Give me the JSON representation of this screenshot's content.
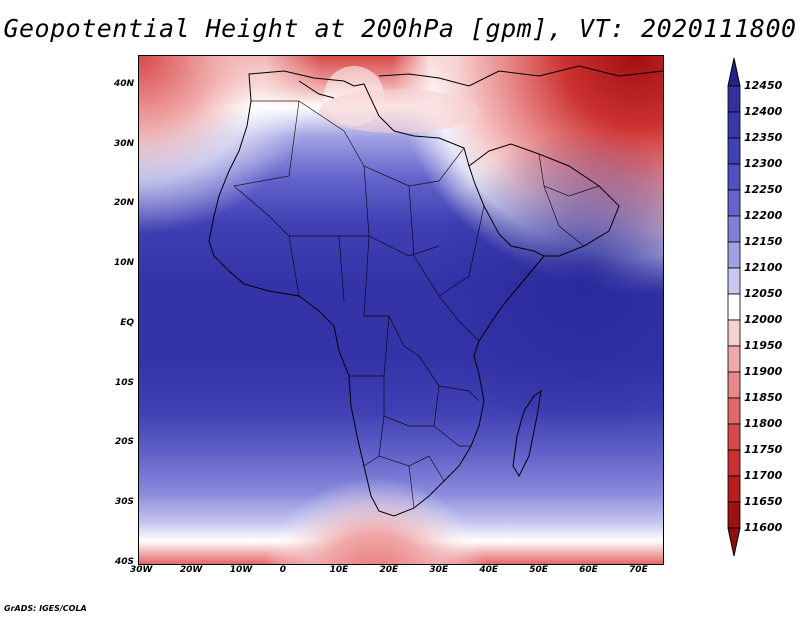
{
  "title": "Geopotential Height at 200hPa [gpm], VT: 2020111800",
  "footer": "GrADS: IGES/COLA",
  "map": {
    "lat_labels": [
      "40N",
      "30N",
      "20N",
      "10N",
      "EQ",
      "10S",
      "20S",
      "30S",
      "40S"
    ],
    "lon_labels": [
      "30W",
      "20W",
      "10W",
      "0",
      "10E",
      "20E",
      "30E",
      "40E",
      "50E",
      "60E",
      "70E"
    ],
    "lat_range": [
      -40,
      45
    ],
    "lon_range": [
      -30,
      75
    ]
  },
  "colorbar": {
    "levels": [
      "12450",
      "12400",
      "12350",
      "12300",
      "12250",
      "12200",
      "12150",
      "12100",
      "12050",
      "12000",
      "11950",
      "11900",
      "11850",
      "11800",
      "11750",
      "11700",
      "11650",
      "11600"
    ],
    "colors": [
      "#2a2a9c",
      "#32329f",
      "#3838aa",
      "#4040b4",
      "#5050c0",
      "#6464cc",
      "#8080d8",
      "#a0a0e4",
      "#c8c8f0",
      "#ffffff",
      "#f7d0d0",
      "#f0a8a8",
      "#e88888",
      "#e06868",
      "#d84848",
      "#cc3030",
      "#b81c1c",
      "#a01010"
    ],
    "top_arrow_color": "#22228c",
    "bottom_arrow_color": "#901010"
  }
}
